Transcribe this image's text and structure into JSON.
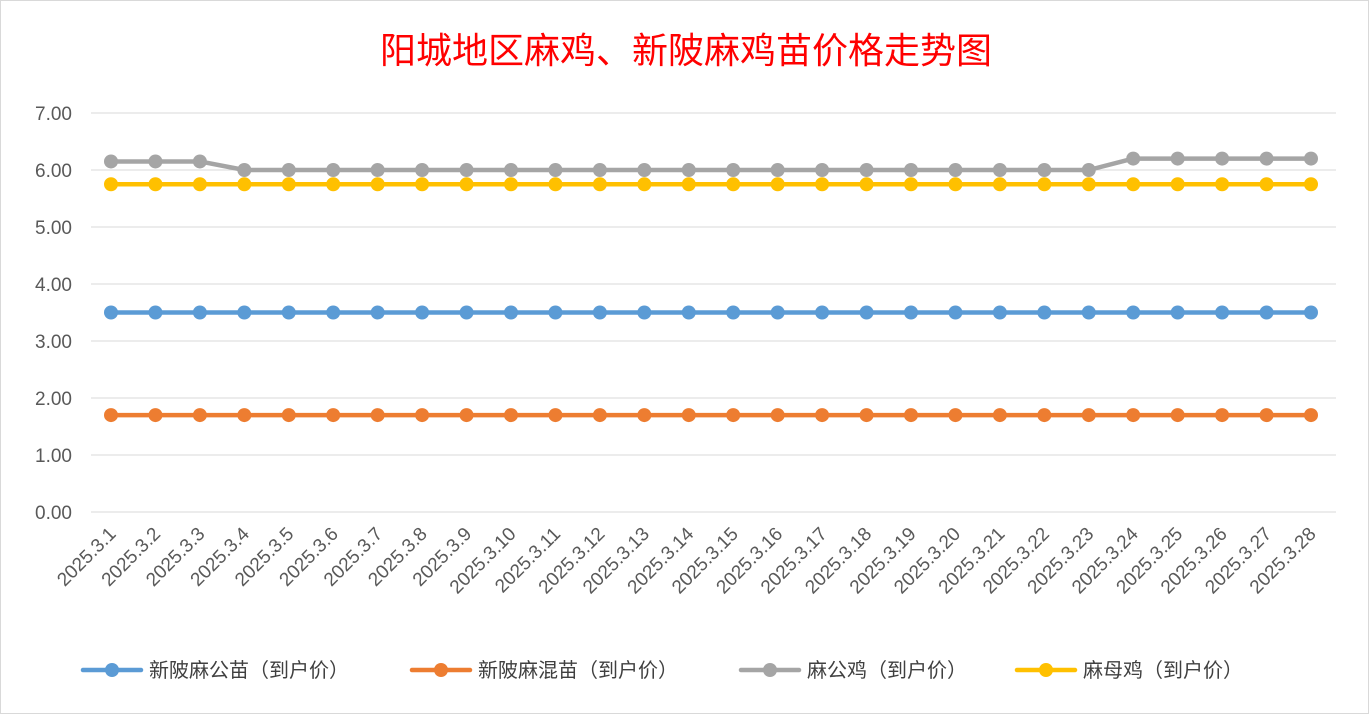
{
  "chart_data": {
    "type": "line",
    "title": "阳城地区麻鸡、新陂麻鸡苗价格走势图",
    "title_color": "#FF0000",
    "xlabel": "",
    "ylabel": "",
    "ylim": [
      0,
      7
    ],
    "yticks": [
      "0.00",
      "1.00",
      "2.00",
      "3.00",
      "4.00",
      "5.00",
      "6.00",
      "7.00"
    ],
    "grid": true,
    "legend_position": "bottom",
    "categories": [
      "2025.3.1",
      "2025.3.2",
      "2025.3.3",
      "2025.3.4",
      "2025.3.5",
      "2025.3.6",
      "2025.3.7",
      "2025.3.8",
      "2025.3.9",
      "2025.3.10",
      "2025.3.11",
      "2025.3.12",
      "2025.3.13",
      "2025.3.14",
      "2025.3.15",
      "2025.3.16",
      "2025.3.17",
      "2025.3.18",
      "2025.3.19",
      "2025.3.20",
      "2025.3.21",
      "2025.3.22",
      "2025.3.23",
      "2025.3.24",
      "2025.3.25",
      "2025.3.26",
      "2025.3.27",
      "2025.3.28"
    ],
    "series": [
      {
        "name": "新陂麻公苗（到户价）",
        "color": "#5B9BD5",
        "values": [
          3.5,
          3.5,
          3.5,
          3.5,
          3.5,
          3.5,
          3.5,
          3.5,
          3.5,
          3.5,
          3.5,
          3.5,
          3.5,
          3.5,
          3.5,
          3.5,
          3.5,
          3.5,
          3.5,
          3.5,
          3.5,
          3.5,
          3.5,
          3.5,
          3.5,
          3.5,
          3.5,
          3.5
        ]
      },
      {
        "name": "新陂麻混苗（到户价）",
        "color": "#ED7D31",
        "values": [
          1.7,
          1.7,
          1.7,
          1.7,
          1.7,
          1.7,
          1.7,
          1.7,
          1.7,
          1.7,
          1.7,
          1.7,
          1.7,
          1.7,
          1.7,
          1.7,
          1.7,
          1.7,
          1.7,
          1.7,
          1.7,
          1.7,
          1.7,
          1.7,
          1.7,
          1.7,
          1.7,
          1.7
        ]
      },
      {
        "name": "麻公鸡（到户价）",
        "color": "#A5A5A5",
        "values": [
          6.15,
          6.15,
          6.15,
          6.0,
          6.0,
          6.0,
          6.0,
          6.0,
          6.0,
          6.0,
          6.0,
          6.0,
          6.0,
          6.0,
          6.0,
          6.0,
          6.0,
          6.0,
          6.0,
          6.0,
          6.0,
          6.0,
          6.0,
          6.2,
          6.2,
          6.2,
          6.2,
          6.2
        ]
      },
      {
        "name": "麻母鸡（到户价）",
        "color": "#FFC000",
        "values": [
          5.75,
          5.75,
          5.75,
          5.75,
          5.75,
          5.75,
          5.75,
          5.75,
          5.75,
          5.75,
          5.75,
          5.75,
          5.75,
          5.75,
          5.75,
          5.75,
          5.75,
          5.75,
          5.75,
          5.75,
          5.75,
          5.75,
          5.75,
          5.75,
          5.75,
          5.75,
          5.75,
          5.75
        ]
      }
    ]
  }
}
